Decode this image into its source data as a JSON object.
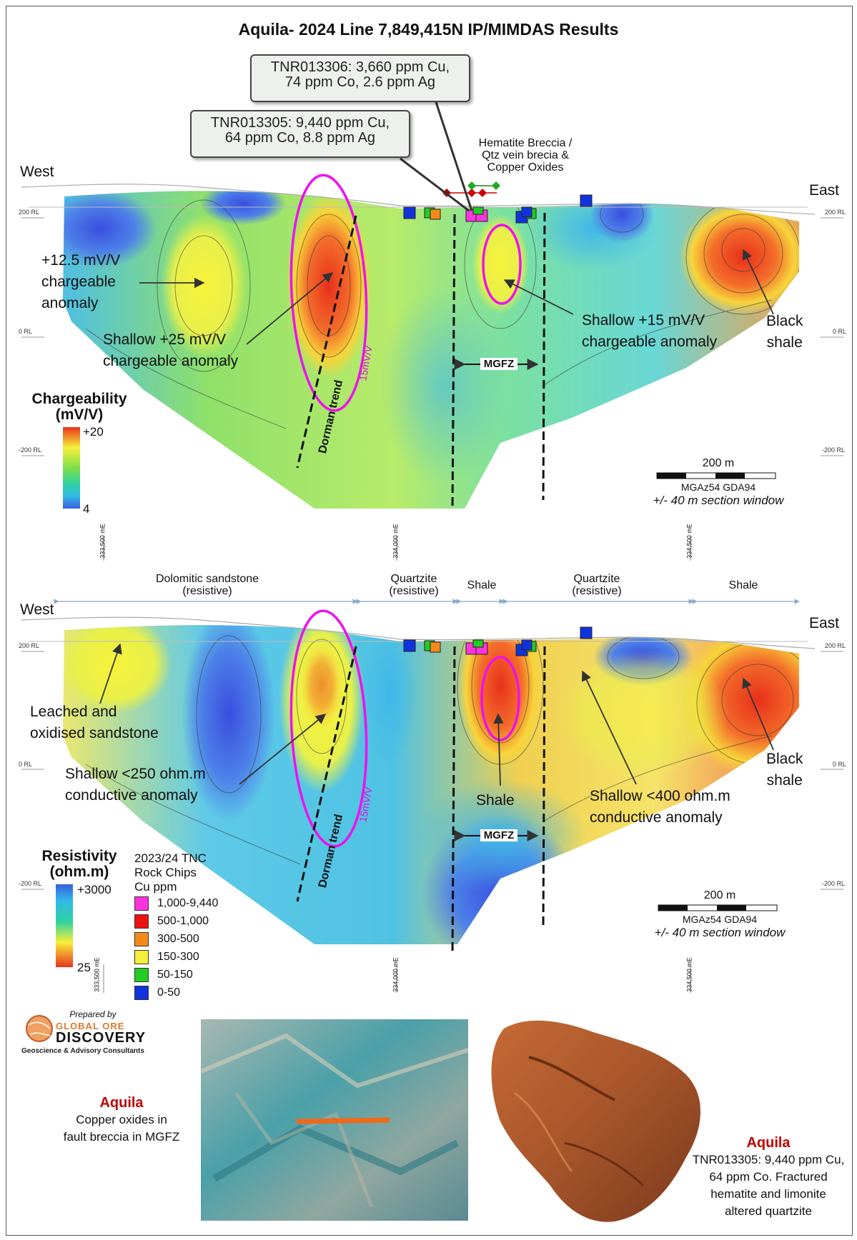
{
  "title": "Aquila- 2024 Line 7,849,415N IP/MIMDAS Results",
  "callout_a": {
    "line1": "TNR013306: 3,660 ppm Cu,",
    "line2": "74 ppm Co, 2.6 ppm Ag"
  },
  "callout_b": {
    "line1": "TNR013305: 9,440 ppm Cu,",
    "line2": "64 ppm Co, 8.8 ppm Ag"
  },
  "hematite": {
    "line1": "Hematite Breccia /",
    "line2": "Qtz vein brecia &",
    "line3": "Copper Oxides"
  },
  "west": "West",
  "east": "East",
  "rl": {
    "r200": "200 RL",
    "r0": "0 RL",
    "rm200": "-200 RL"
  },
  "easting": {
    "e1": "333,500 mE",
    "e2": "334,000 mE",
    "e3": "334,500 mE"
  },
  "top": {
    "a1": "+12.5 mV/V",
    "a2": "chargeable",
    "a3": "anomaly",
    "b1": "Shallow +25 mV/V",
    "b2": "chargeable anomaly",
    "c1": "Shallow +15 mV/V",
    "c2": "chargeable anomaly",
    "d1": "Black",
    "d2": "shale",
    "mgfz": "MGFZ",
    "dorman": "Dorman trend",
    "contour": "15mV/V"
  },
  "charge_legend": {
    "title1": "Chargeability",
    "title2": "(mV/V)",
    "max": "+20",
    "min": "4",
    "colors": [
      "#e8341c",
      "#f7a52a",
      "#f6ef3a",
      "#9be24a",
      "#2fd17a",
      "#31b9d8",
      "#3a5fe0"
    ]
  },
  "scale": {
    "label": "200 m",
    "datum": "MGAz54 GDA94",
    "window": "+/- 40 m section window"
  },
  "units": {
    "u1": "Dolomitic sandstone",
    "u1b": "(resistive)",
    "u2": "Quartzite",
    "u2b": "(resistive)",
    "u3": "Shale",
    "u4": "Quartzite",
    "u4b": "(resistive)",
    "u5": "Shale"
  },
  "bottom": {
    "a1": "Leached and",
    "a2": "oxidised sandstone",
    "b1": "Shallow <250 ohm.m",
    "b2": "conductive anomaly",
    "shale": "Shale",
    "c1": "Shallow <400 ohm.m",
    "c2": "conductive anomaly",
    "d1": "Black",
    "d2": "shale",
    "mgfz": "MGFZ",
    "dorman": "Dorman trend",
    "contour": "15mV/V"
  },
  "res_legend": {
    "title1": "Resistivity",
    "title2": "(ohm.m)",
    "max": "+3000",
    "min": "25"
  },
  "rock_legend": {
    "title1": "2023/24 TNC",
    "title2": "Rock Chips",
    "title3": "Cu ppm",
    "items": [
      {
        "label": "1,000-9,440",
        "color": "#ff33dd"
      },
      {
        "label": "500-1,000",
        "color": "#ee1111"
      },
      {
        "label": "300-500",
        "color": "#f58a1a"
      },
      {
        "label": "150-300",
        "color": "#f6ef3a"
      },
      {
        "label": "50-150",
        "color": "#22cc22"
      },
      {
        "label": "0-50",
        "color": "#1133dd"
      }
    ]
  },
  "logo": {
    "prepared": "Prepared by",
    "l1": "GLOBAL ORE",
    "l2": "DISCOVERY",
    "l3": "Geoscience & Advisory Consultants"
  },
  "photo1_caption": {
    "title": "Aquila",
    "l1": "Copper oxides in",
    "l2": "fault breccia in MGFZ"
  },
  "photo2_caption": {
    "title": "Aquila",
    "l1": "TNR013305: 9,440 ppm Cu,",
    "l2": "64 ppm Co. Fractured",
    "l3": "hematite and limonite",
    "l4": "altered quartzite"
  }
}
